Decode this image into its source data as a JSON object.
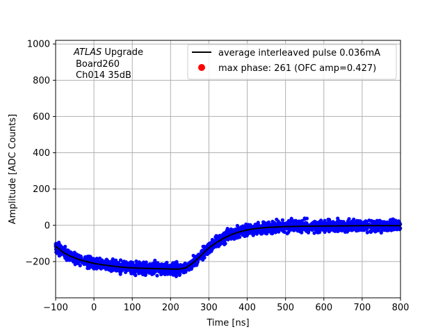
{
  "chart_data": {
    "type": "scatter",
    "xlabel": "Time [ns]",
    "ylabel": "Amplitude [ADC Counts]",
    "xlim": [
      -100,
      800
    ],
    "ylim": [
      -400,
      1020
    ],
    "x_ticks": [
      "-100",
      "0",
      "100",
      "200",
      "300",
      "400",
      "500",
      "600",
      "700",
      "800"
    ],
    "y_ticks": [
      "-200",
      "0",
      "200",
      "400",
      "600",
      "800",
      "1000"
    ],
    "grid": true,
    "legend_position": "top-right",
    "annotation": {
      "line1_italic": "ATLAS",
      "line1_rest": " Upgrade",
      "line2": "Board260",
      "line3": "Ch014 35dB"
    },
    "series": [
      {
        "name": "average interleaved pulse 0.036mA",
        "kind": "line",
        "color": "#000000",
        "x": [
          -100,
          -80,
          -60,
          -40,
          -20,
          0,
          20,
          40,
          60,
          80,
          100,
          120,
          140,
          160,
          180,
          200,
          220,
          240,
          260,
          280,
          300,
          320,
          340,
          360,
          380,
          400,
          420,
          440,
          460,
          480,
          500,
          550,
          600,
          650,
          700,
          750,
          800
        ],
        "y": [
          -115,
          -150,
          -172,
          -188,
          -200,
          -210,
          -217,
          -223,
          -228,
          -232,
          -235,
          -237,
          -238,
          -239,
          -240,
          -241,
          -242,
          -235,
          -205,
          -165,
          -125,
          -95,
          -70,
          -50,
          -36,
          -26,
          -19,
          -14,
          -11,
          -9,
          -7,
          -5,
          -4,
          -3,
          -2,
          -2,
          -2
        ]
      },
      {
        "name": "max phase: 261 (OFC amp=0.427)",
        "kind": "marker",
        "color": "#ff0000",
        "points": []
      },
      {
        "name": "",
        "kind": "scatter",
        "color": "#0000ff",
        "x_range": [
          -100,
          800
        ],
        "noise_amplitude": 40
      }
    ]
  }
}
